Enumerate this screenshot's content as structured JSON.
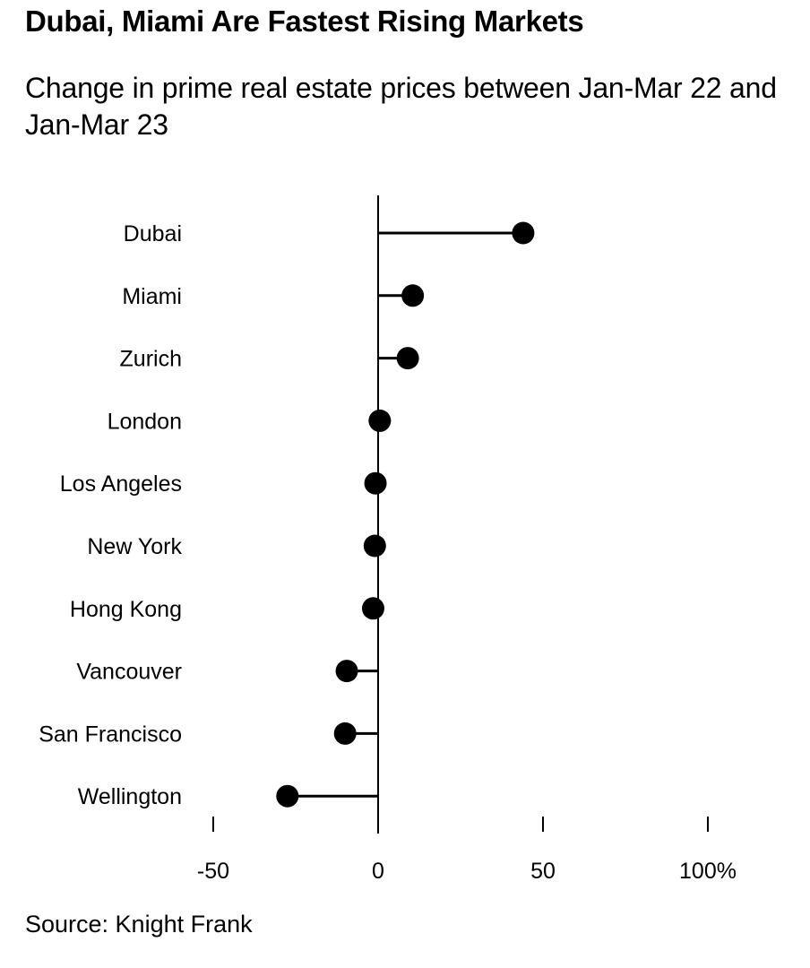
{
  "title": "Dubai, Miami Are Fastest Rising Markets",
  "subtitle": "Change in prime real estate prices between Jan-Mar 22 and Jan-Mar 23",
  "source": "Source: Knight Frank",
  "colors": {
    "text": "#000000",
    "marks": "#000000",
    "background": "#ffffff"
  },
  "chart_data": {
    "type": "lollipop",
    "orientation": "horizontal",
    "title": "Dubai, Miami Are Fastest Rising Markets",
    "subtitle": "Change in prime real estate prices between Jan-Mar 22 and Jan-Mar 23",
    "categories": [
      "Dubai",
      "Miami",
      "Zurich",
      "London",
      "Los Angeles",
      "New York",
      "Hong Kong",
      "Vancouver",
      "San Francisco",
      "Wellington"
    ],
    "values": [
      44,
      10.5,
      9,
      0.5,
      -0.8,
      -1,
      -1.5,
      -9.5,
      -10,
      -27.5
    ],
    "unit": "%",
    "xlim": [
      -50,
      100
    ],
    "xticks": [
      -50,
      0,
      50,
      100
    ],
    "xtick_labels": [
      "-50",
      "0",
      "50",
      "100%"
    ],
    "xlabel": "",
    "ylabel": "",
    "grid": false,
    "legend": "none",
    "source": "Source: Knight Frank"
  }
}
